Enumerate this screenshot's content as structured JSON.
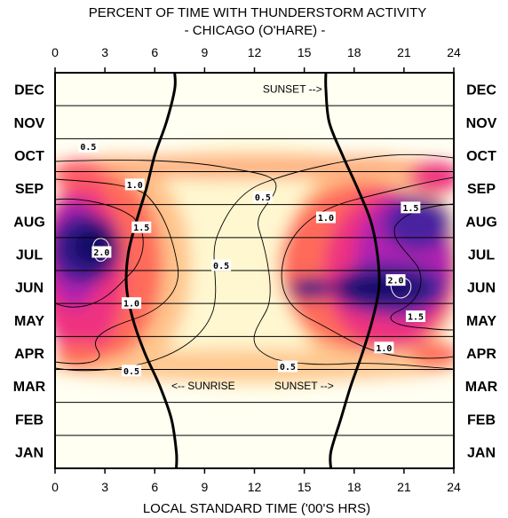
{
  "chart_data": {
    "type": "heatmap",
    "title": "PERCENT OF TIME WITH THUNDERSTORM ACTIVITY",
    "subtitle": "- CHICAGO (O'HARE) -",
    "xlabel": "LOCAL STANDARD TIME ('00'S HRS)",
    "ylabel": "",
    "x_range": [
      0,
      24
    ],
    "x_ticks": [
      "0",
      "3",
      "6",
      "9",
      "12",
      "15",
      "18",
      "21",
      "24"
    ],
    "x_tick_values": [
      0,
      3,
      6,
      9,
      12,
      15,
      18,
      21,
      24
    ],
    "months": [
      "JAN",
      "FEB",
      "MAR",
      "APR",
      "MAY",
      "JUN",
      "JUL",
      "AUG",
      "SEP",
      "OCT",
      "NOV",
      "DEC"
    ],
    "grid": true,
    "colorscale": [
      "#fffff0",
      "#fff0c0",
      "#ffc890",
      "#ff7a5a",
      "#f03a78",
      "#c020b0",
      "#6828a8",
      "#1a1270"
    ],
    "contour_levels": [
      0.5,
      1.0,
      1.5,
      2.0
    ],
    "sunrise_hours": [
      7.3,
      7.0,
      6.3,
      5.4,
      4.7,
      4.3,
      4.4,
      4.9,
      5.5,
      6.0,
      6.7,
      7.2
    ],
    "sunset_hours": [
      16.6,
      17.2,
      17.8,
      18.5,
      19.1,
      19.5,
      19.4,
      19.0,
      18.2,
      17.3,
      16.5,
      16.3
    ],
    "annotations": [
      {
        "text": "<-- SUNRISE",
        "hour": 7.5,
        "month_pos": 12.5
      },
      {
        "text": "SUNSET -->",
        "hour": 12.5,
        "month_pos": 11.5
      },
      {
        "text": "<-- SUNRISE",
        "hour": 7.0,
        "month_pos": 2.5
      },
      {
        "text": "SUNSET -->",
        "hour": 13.2,
        "month_pos": 2.5
      }
    ],
    "contour_labels": [
      {
        "text": "0.5",
        "hour": 2.0,
        "month_pos": 9.75
      },
      {
        "text": "1.0",
        "hour": 4.8,
        "month_pos": 8.6
      },
      {
        "text": "1.5",
        "hour": 5.2,
        "month_pos": 7.3
      },
      {
        "text": "2.0",
        "hour": 2.8,
        "month_pos": 6.55
      },
      {
        "text": "0.5",
        "hour": 10.0,
        "month_pos": 6.15
      },
      {
        "text": "1.0",
        "hour": 4.6,
        "month_pos": 5.0
      },
      {
        "text": "0.5",
        "hour": 4.6,
        "month_pos": 2.95
      },
      {
        "text": "0.5",
        "hour": 12.5,
        "month_pos": 8.22
      },
      {
        "text": "1.0",
        "hour": 16.3,
        "month_pos": 7.6
      },
      {
        "text": "1.5",
        "hour": 21.4,
        "month_pos": 7.9
      },
      {
        "text": "2.0",
        "hour": 20.5,
        "month_pos": 5.7
      },
      {
        "text": "1.5",
        "hour": 21.7,
        "month_pos": 4.6
      },
      {
        "text": "1.0",
        "hour": 19.8,
        "month_pos": 3.65
      },
      {
        "text": "0.5",
        "hour": 14.0,
        "month_pos": 3.08
      }
    ]
  }
}
